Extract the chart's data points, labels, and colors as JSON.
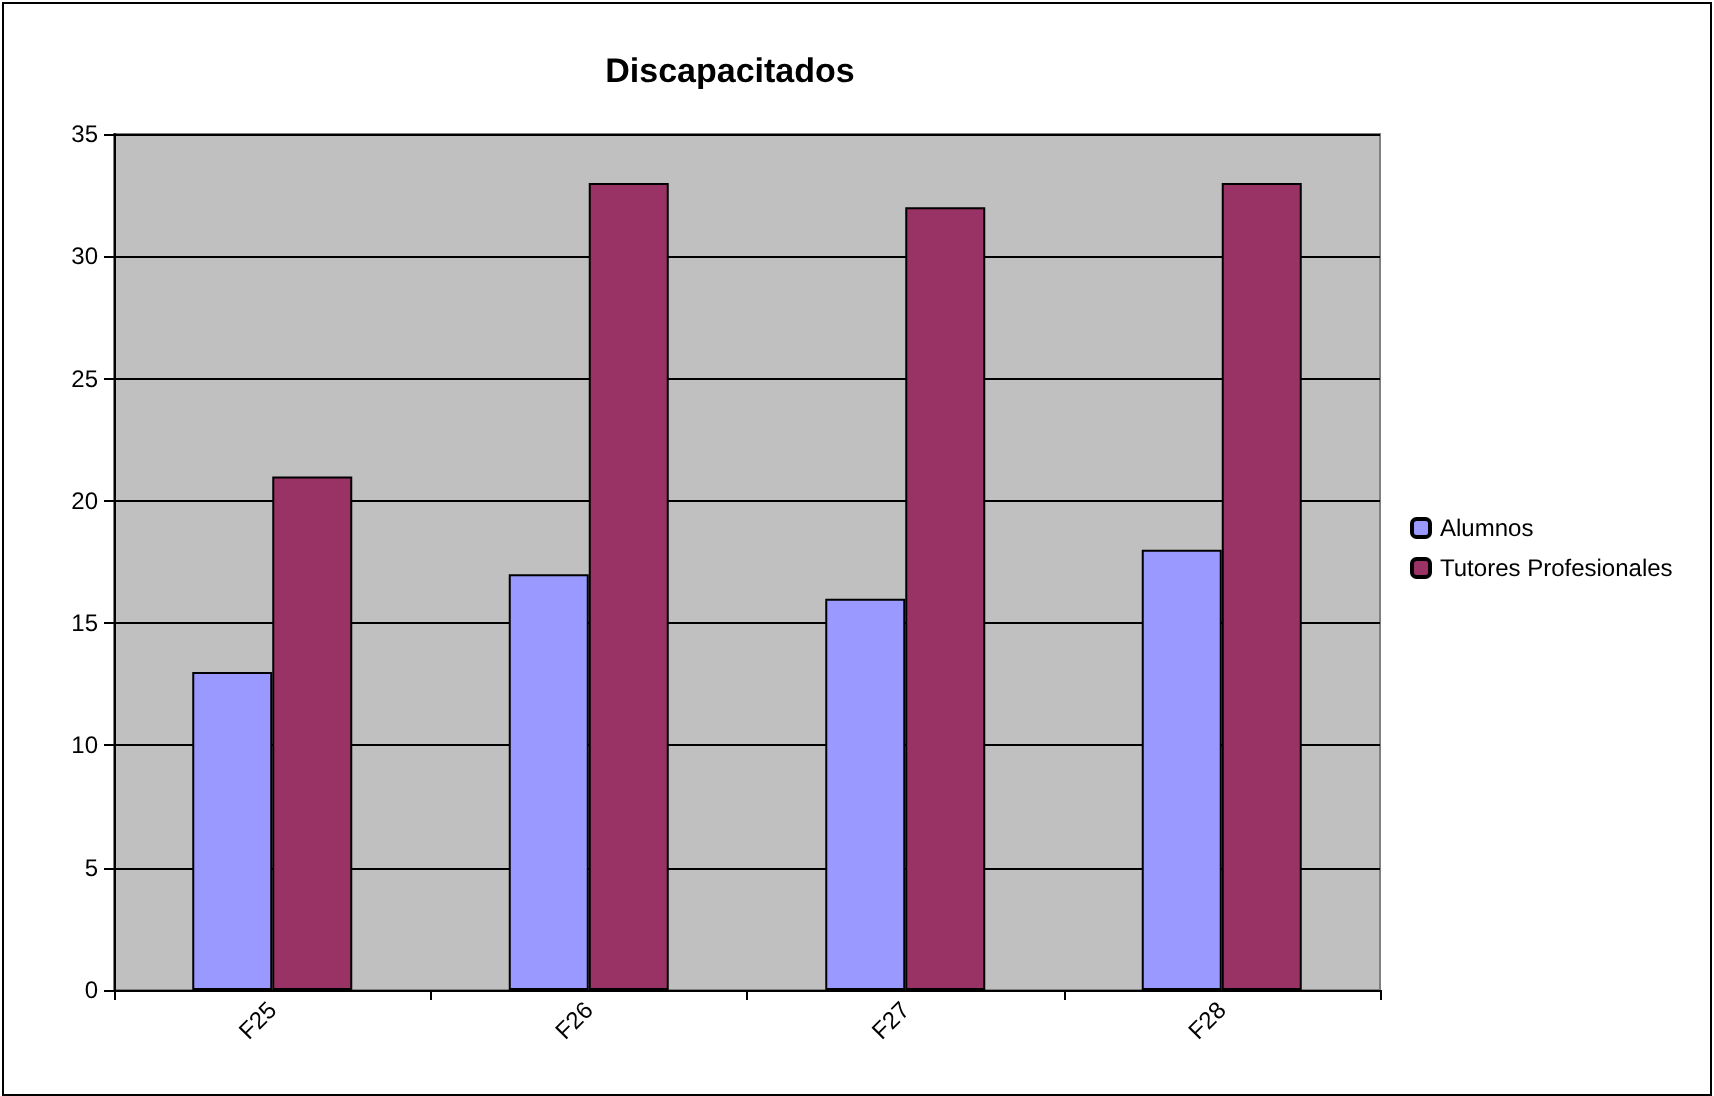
{
  "chart_data": {
    "type": "bar",
    "title": "Discapacitados",
    "categories": [
      "F25",
      "F26",
      "F27",
      "F28"
    ],
    "series": [
      {
        "name": "Alumnos",
        "color": "#9999ff",
        "values": [
          13,
          17,
          16,
          18
        ]
      },
      {
        "name": "Tutores Profesionales",
        "color": "#993366",
        "values": [
          21,
          33,
          32,
          33
        ]
      }
    ],
    "ylim": [
      0,
      35
    ],
    "yticks": [
      0,
      5,
      10,
      15,
      20,
      25,
      30,
      35
    ],
    "grid": "y",
    "legend": "right"
  }
}
